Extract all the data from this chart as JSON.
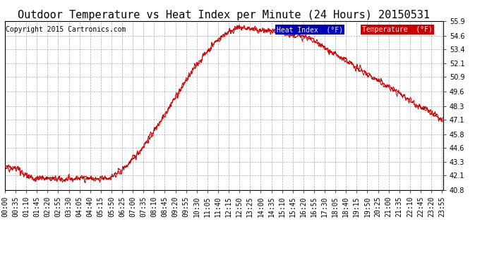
{
  "title": "Outdoor Temperature vs Heat Index per Minute (24 Hours) 20150531",
  "copyright": "Copyright 2015 Cartronics.com",
  "ylim": [
    40.8,
    55.9
  ],
  "yticks": [
    40.8,
    42.1,
    43.3,
    44.6,
    45.8,
    47.1,
    48.3,
    49.6,
    50.9,
    52.1,
    53.4,
    54.6,
    55.9
  ],
  "bg_color": "#ffffff",
  "plot_bg_color": "#ffffff",
  "grid_color": "#aaaaaa",
  "line_color": "#cc0000",
  "legend_heat_bg": "#0000bb",
  "legend_temp_bg": "#cc0000",
  "title_fontsize": 11,
  "copyright_fontsize": 7,
  "tick_fontsize": 7,
  "xtick_labels": [
    "00:00",
    "00:35",
    "01:10",
    "01:45",
    "02:20",
    "02:55",
    "03:30",
    "04:05",
    "04:40",
    "05:15",
    "05:50",
    "06:25",
    "07:00",
    "07:35",
    "08:10",
    "08:45",
    "09:20",
    "09:55",
    "10:30",
    "11:05",
    "11:40",
    "12:15",
    "12:50",
    "13:25",
    "14:00",
    "14:35",
    "15:10",
    "15:45",
    "16:20",
    "16:55",
    "17:30",
    "18:05",
    "18:40",
    "19:15",
    "19:50",
    "20:25",
    "21:00",
    "21:35",
    "22:10",
    "22:45",
    "23:20",
    "23:55"
  ]
}
